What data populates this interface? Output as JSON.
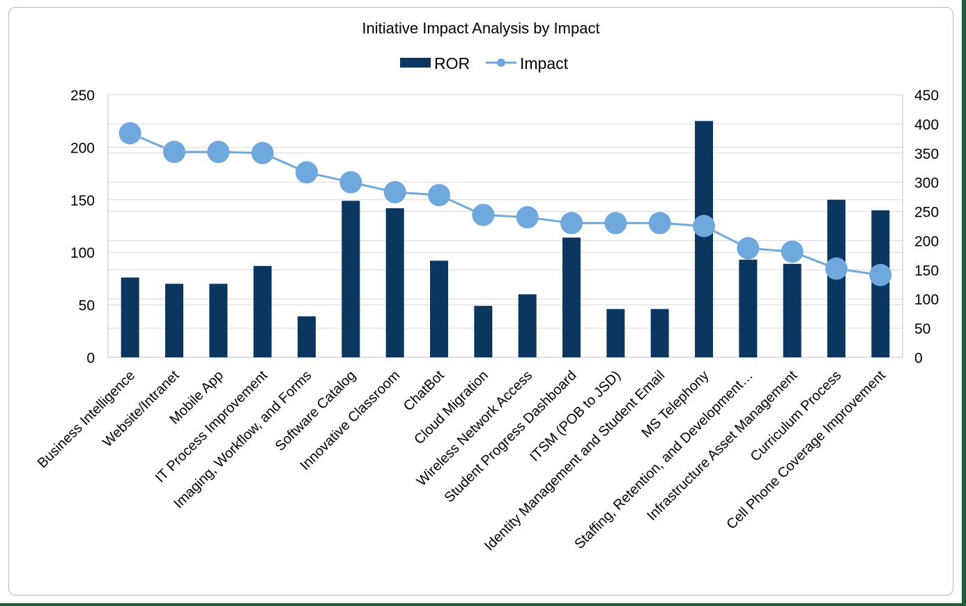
{
  "chart_data": {
    "type": "bar",
    "title": "Initiative Impact Analysis by Impact",
    "categories": [
      "Business Intelligence",
      "Website/Intranet",
      "Mobile App",
      "IT Process Improvement",
      "Imaging, Workflow, and Forms",
      "Software Catalog",
      "Innovative Classroom",
      "ChatBot",
      "Cloud Migration",
      "Wireless Network Access",
      "Student Progress Dashboard",
      "ITSM (POB to JSD)",
      "Identity Management and Student Email",
      "MS Telephony",
      "Staffing, Retention, and Development…",
      "Infrastructure Asset Management",
      "Curriculum Process",
      "Cell Phone Coverage Improvement"
    ],
    "series": [
      {
        "name": "ROR",
        "type": "bar",
        "axis": "left",
        "color": "#0b365f",
        "values": [
          76,
          70,
          70,
          87,
          39,
          149,
          142,
          92,
          49,
          60,
          114,
          46,
          46,
          225,
          93,
          89,
          150,
          140
        ]
      },
      {
        "name": "Impact",
        "type": "line",
        "axis": "right",
        "color": "#6fa8dc",
        "values": [
          384,
          352,
          352,
          350,
          317,
          300,
          283,
          278,
          244,
          240,
          230,
          230,
          230,
          225,
          187,
          181,
          152,
          141
        ]
      }
    ],
    "y_left": {
      "min": 0,
      "max": 250,
      "ticks": [
        "0",
        "50",
        "100",
        "150",
        "200",
        "250"
      ]
    },
    "y_right": {
      "min": 0,
      "max": 450,
      "ticks": [
        "0",
        "50",
        "100",
        "150",
        "200",
        "250",
        "300",
        "350",
        "400",
        "450"
      ]
    },
    "legend": "top",
    "grid": true
  }
}
